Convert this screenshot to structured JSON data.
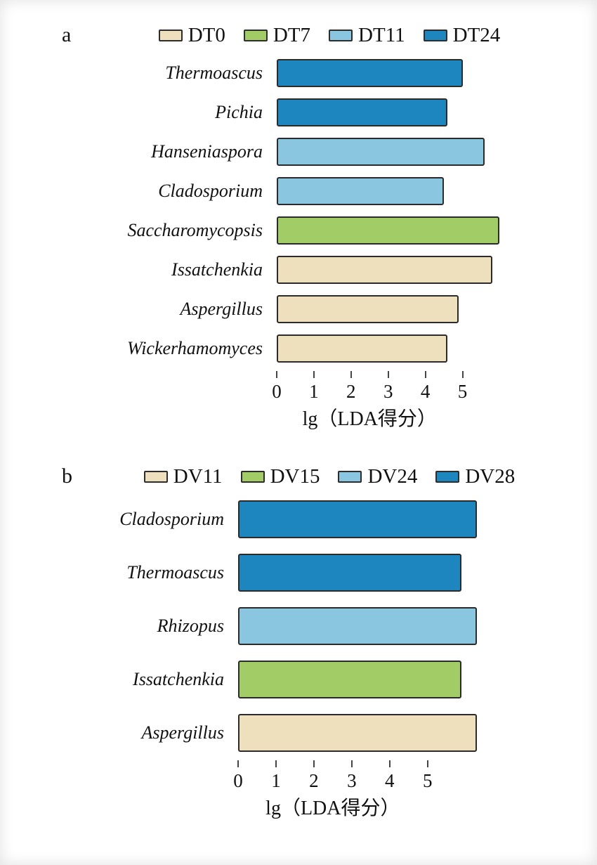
{
  "figure": {
    "background": "#ffffff",
    "bar_border_color": "#2b2b2b"
  },
  "chart_data": [
    {
      "type": "bar",
      "orientation": "horizontal",
      "panel_label": "a",
      "title": "",
      "xlabel": "lg（LDA得分）",
      "ylabel": "",
      "xlim": [
        0,
        6.2
      ],
      "xticks": [
        0,
        1,
        2,
        3,
        4,
        5
      ],
      "grid": false,
      "legend_position": "top",
      "legend": [
        {
          "label": "DT0",
          "color": "#efe0bd"
        },
        {
          "label": "DT7",
          "color": "#a2cc66"
        },
        {
          "label": "DT11",
          "color": "#8bc6e1"
        },
        {
          "label": "DT24",
          "color": "#1e86be"
        }
      ],
      "bars": [
        {
          "category": "Thermoascus",
          "group": "DT24",
          "value": 5.0
        },
        {
          "category": "Pichia",
          "group": "DT24",
          "value": 4.6
        },
        {
          "category": "Hanseniaspora",
          "group": "DT11",
          "value": 5.6
        },
        {
          "category": "Cladosporium",
          "group": "DT11",
          "value": 4.5
        },
        {
          "category": "Saccharomycopsis",
          "group": "DT7",
          "value": 6.0
        },
        {
          "category": "Issatchenkia",
          "group": "DT0",
          "value": 5.8
        },
        {
          "category": "Aspergillus",
          "group": "DT0",
          "value": 4.9
        },
        {
          "category": "Wickerhamomyces",
          "group": "DT0",
          "value": 4.6
        }
      ]
    },
    {
      "type": "bar",
      "orientation": "horizontal",
      "panel_label": "b",
      "title": "",
      "xlabel": "lg（LDA得分）",
      "ylabel": "",
      "xlim": [
        0,
        6.6
      ],
      "xticks": [
        0,
        1,
        2,
        3,
        4,
        5
      ],
      "grid": false,
      "legend_position": "top",
      "legend": [
        {
          "label": "DV11",
          "color": "#efe0bd"
        },
        {
          "label": "DV15",
          "color": "#a2cc66"
        },
        {
          "label": "DV24",
          "color": "#8bc6e1"
        },
        {
          "label": "DV28",
          "color": "#1e86be"
        }
      ],
      "bars": [
        {
          "category": "Cladosporium",
          "group": "DV28",
          "value": 6.3
        },
        {
          "category": "Thermoascus",
          "group": "DV28",
          "value": 5.9
        },
        {
          "category": "Rhizopus",
          "group": "DV24",
          "value": 6.3
        },
        {
          "category": "Issatchenkia",
          "group": "DV15",
          "value": 5.9
        },
        {
          "category": "Aspergillus",
          "group": "DV11",
          "value": 6.3
        }
      ]
    }
  ]
}
